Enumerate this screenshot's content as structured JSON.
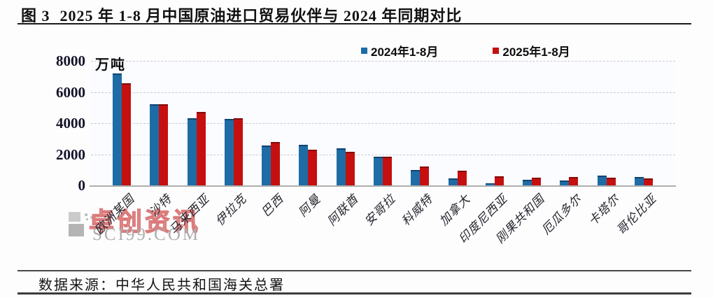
{
  "page": {
    "figure_label": "图 3",
    "title_text": "2025 年 1-8 月中国原油进口贸易伙伴与 2024 年同期对比"
  },
  "chart_data": {
    "type": "bar",
    "title": "2025 年 1-8 月中国原油进口贸易伙伴与 2024 年同期对比",
    "unit_label": "万吨",
    "categories": [
      "欧洲某国",
      "沙特",
      "马来西亚",
      "伊拉克",
      "巴西",
      "阿曼",
      "阿联酋",
      "安哥拉",
      "科威特",
      "加拿大",
      "印度尼西亚",
      "刚果共和国",
      "厄瓜多尔",
      "卡塔尔",
      "哥伦比亚"
    ],
    "series": [
      {
        "name": "2024年1-8月",
        "color": "#1e6ca6",
        "edge_color": "#10456e",
        "values": [
          7200,
          5200,
          4300,
          4250,
          2550,
          2600,
          2400,
          1850,
          1000,
          450,
          150,
          350,
          300,
          650,
          550
        ]
      },
      {
        "name": "2025年1-8月",
        "color": "#c5100f",
        "edge_color": "#850b0b",
        "values": [
          6550,
          5200,
          4700,
          4300,
          2800,
          2300,
          2150,
          1850,
          1200,
          950,
          600,
          500,
          550,
          500,
          450
        ]
      }
    ],
    "ylim": [
      0,
      8000
    ],
    "yticks": [
      0,
      2000,
      4000,
      6000,
      8000
    ],
    "grid": "horizontal-dashed",
    "legend_position": "top"
  },
  "watermark": {
    "logo_icon": "sci99-grid-logo",
    "brand_text": "卓创资讯",
    "site_text": "SCI99.COM"
  },
  "footer": {
    "source_text": "数据来源：中华人民共和国海关总署"
  }
}
